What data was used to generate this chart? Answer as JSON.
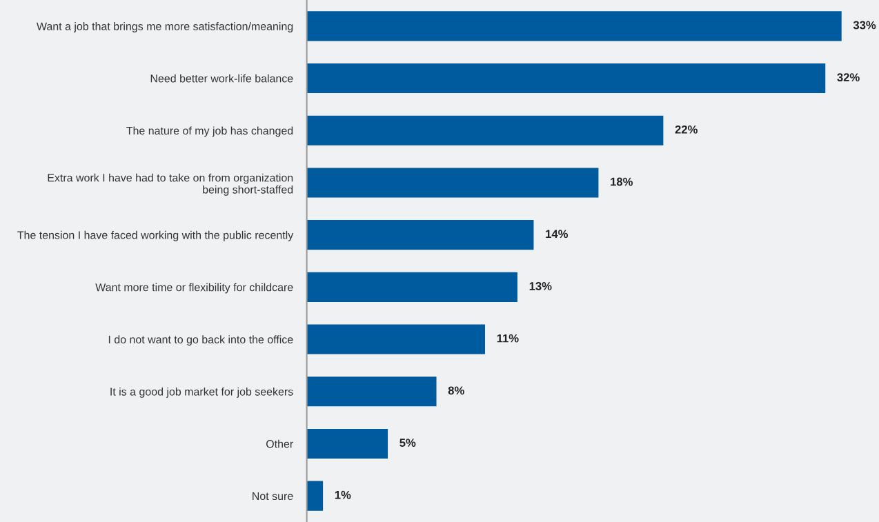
{
  "chart_data": {
    "type": "bar",
    "orientation": "horizontal",
    "categories": [
      "Want a job that brings me more satisfaction/meaning",
      "Need better work-life balance",
      "The nature of my job has changed",
      "Extra work I have had to take on from organization\nbeing short-staffed",
      "The tension I have faced working with the public recently",
      "Want more time or flexibility for childcare",
      "I do not want to go back into the office",
      "It is a good job market for job seekers",
      "Other",
      "Not sure"
    ],
    "values": [
      33,
      32,
      22,
      18,
      14,
      13,
      11,
      8,
      5,
      1
    ],
    "value_labels": [
      "33%",
      "32%",
      "22%",
      "18%",
      "14%",
      "13%",
      "11%",
      "8%",
      "5%",
      "1%"
    ],
    "color": "#005a9e"
  }
}
